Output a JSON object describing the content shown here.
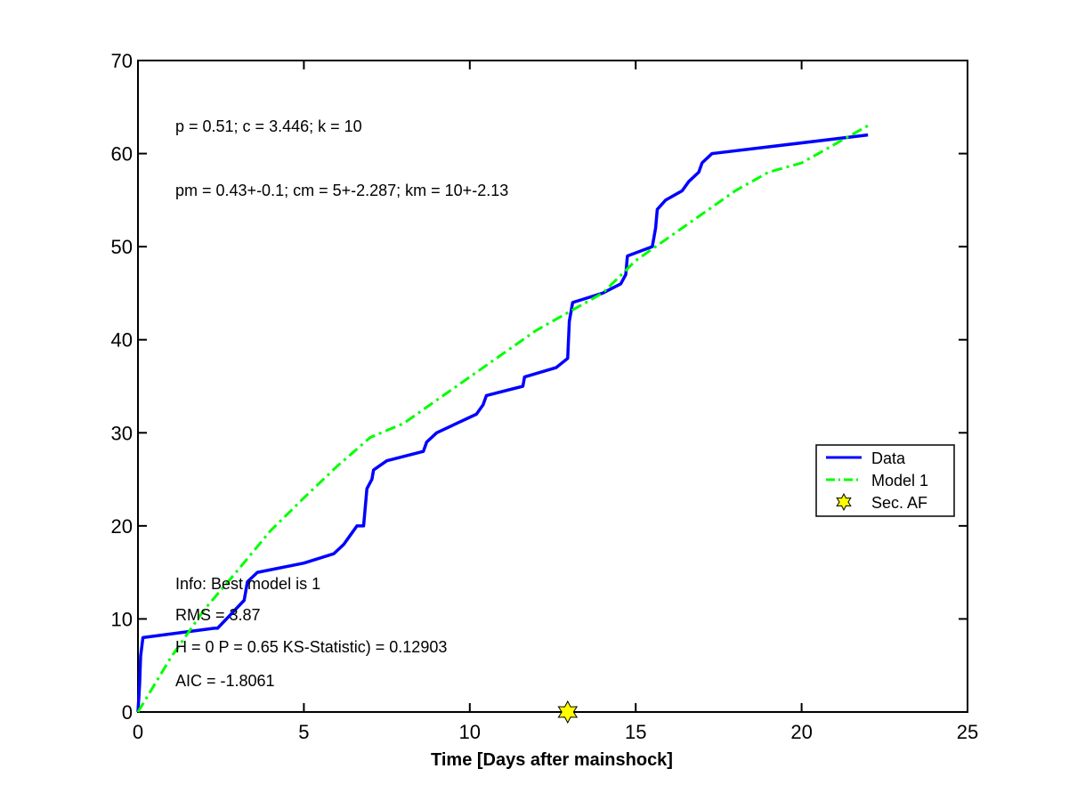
{
  "chart_data": {
    "type": "line",
    "xlabel": "Time [Days after mainshock]",
    "ylabel": "",
    "xlim": [
      0,
      25
    ],
    "ylim": [
      0,
      70
    ],
    "xticks": [
      0,
      5,
      10,
      15,
      20,
      25
    ],
    "yticks": [
      0,
      10,
      20,
      30,
      40,
      50,
      60,
      70
    ],
    "grid": false,
    "legend_position": "right",
    "legend": [
      "Data",
      "Model 1",
      "Sec. AF"
    ],
    "annotations": [
      "p = 0.51; c = 3.446; k = 10",
      "pm = 0.43+-0.1; cm = 5+-2.287; km = 10+-2.13",
      "Info: Best model is 1",
      "RMS = 3.87",
      "H = 0 P = 0.65 KS-Statistic) = 0.12903",
      "AIC = -1.8061"
    ],
    "series": [
      {
        "name": "Data",
        "style": "solid",
        "color": "#0000ff",
        "points": [
          [
            0,
            0
          ],
          [
            0.05,
            3
          ],
          [
            0.08,
            6
          ],
          [
            0.15,
            8
          ],
          [
            2.3,
            9
          ],
          [
            2.4,
            9
          ],
          [
            3.2,
            12
          ],
          [
            3.3,
            14
          ],
          [
            3.6,
            15
          ],
          [
            5.0,
            16
          ],
          [
            5.9,
            17
          ],
          [
            6.2,
            18
          ],
          [
            6.4,
            19
          ],
          [
            6.6,
            20
          ],
          [
            6.8,
            20
          ],
          [
            6.9,
            24
          ],
          [
            7.05,
            25
          ],
          [
            7.1,
            26
          ],
          [
            7.5,
            27
          ],
          [
            8.6,
            28
          ],
          [
            8.7,
            29
          ],
          [
            9.0,
            30
          ],
          [
            9.6,
            31
          ],
          [
            10.2,
            32
          ],
          [
            10.4,
            33
          ],
          [
            10.5,
            34
          ],
          [
            11.6,
            35
          ],
          [
            11.65,
            36
          ],
          [
            12.6,
            37
          ],
          [
            12.95,
            38
          ],
          [
            13.0,
            42
          ],
          [
            13.1,
            44
          ],
          [
            14.0,
            45
          ],
          [
            14.55,
            46
          ],
          [
            14.7,
            47
          ],
          [
            14.75,
            49
          ],
          [
            15.5,
            50
          ],
          [
            15.6,
            52
          ],
          [
            15.65,
            54
          ],
          [
            15.9,
            55
          ],
          [
            16.4,
            56
          ],
          [
            16.6,
            57
          ],
          [
            16.9,
            58
          ],
          [
            17.0,
            59
          ],
          [
            17.3,
            60
          ],
          [
            22.0,
            62
          ]
        ]
      },
      {
        "name": "Model 1",
        "style": "dash-dot",
        "color": "#00ff00",
        "points": [
          [
            0,
            0
          ],
          [
            1,
            5.9
          ],
          [
            2,
            11
          ],
          [
            3,
            15.2
          ],
          [
            4,
            19.5
          ],
          [
            5,
            23
          ],
          [
            6,
            26.4
          ],
          [
            7,
            29.5
          ],
          [
            8,
            31
          ],
          [
            9,
            33.5
          ],
          [
            10,
            36
          ],
          [
            11,
            38.5
          ],
          [
            12,
            41
          ],
          [
            13,
            43
          ],
          [
            14,
            45
          ],
          [
            15,
            48.5
          ],
          [
            16,
            51
          ],
          [
            17,
            53.5
          ],
          [
            18,
            56
          ],
          [
            19,
            58
          ],
          [
            20,
            59
          ],
          [
            21,
            61
          ],
          [
            22,
            63
          ]
        ]
      },
      {
        "name": "Sec. AF",
        "style": "marker-hexagram",
        "color": "#ffff00",
        "points": [
          [
            12.95,
            0
          ]
        ]
      }
    ]
  }
}
